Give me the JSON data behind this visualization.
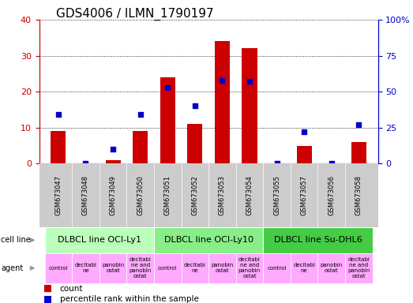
{
  "title": "GDS4006 / ILMN_1790197",
  "samples": [
    "GSM673047",
    "GSM673048",
    "GSM673049",
    "GSM673050",
    "GSM673051",
    "GSM673052",
    "GSM673053",
    "GSM673054",
    "GSM673055",
    "GSM673057",
    "GSM673056",
    "GSM673058"
  ],
  "count_values": [
    9,
    0,
    1,
    9,
    24,
    11,
    34,
    32,
    0,
    5,
    0,
    6
  ],
  "percentile_values": [
    34,
    0,
    10,
    34,
    53,
    40,
    58,
    57,
    0,
    22,
    0,
    27
  ],
  "ylim_left": [
    0,
    40
  ],
  "ylim_right": [
    0,
    100
  ],
  "yticks_left": [
    0,
    10,
    20,
    30,
    40
  ],
  "yticks_right": [
    0,
    25,
    50,
    75,
    100
  ],
  "bar_color": "#cc0000",
  "dot_color": "#0000cc",
  "cell_line_groups": [
    {
      "label": "DLBCL line OCI-Ly1",
      "start": 0,
      "end": 4,
      "color": "#bbffbb"
    },
    {
      "label": "DLBCL line OCI-Ly10",
      "start": 4,
      "end": 8,
      "color": "#88ee88"
    },
    {
      "label": "DLBCL line Su-DHL6",
      "start": 8,
      "end": 12,
      "color": "#44cc44"
    }
  ],
  "agent_labels": [
    "control",
    "decitabi\nne",
    "panobin\nostat",
    "decitabi\nne and\npanobin\nostat",
    "control",
    "decitabi\nne",
    "panobin\nostat",
    "decitabi\nne and\npanobin\nostat",
    "control",
    "decitabi\nne",
    "panobin\nostat",
    "decitabi\nne and\npanobin\nostat"
  ],
  "agent_color": "#ffaaff",
  "sample_bg_color": "#cccccc",
  "legend_count_color": "#cc0000",
  "legend_dot_color": "#0000cc",
  "bg_color": "#ffffff",
  "left_axis_color": "#cc0000",
  "right_axis_color": "#0000cc",
  "title_fontsize": 11,
  "axis_fontsize": 8,
  "sample_fontsize": 6,
  "cell_line_fontsize": 8,
  "agent_fontsize": 5,
  "label_fontsize": 7,
  "legend_fontsize": 7.5
}
